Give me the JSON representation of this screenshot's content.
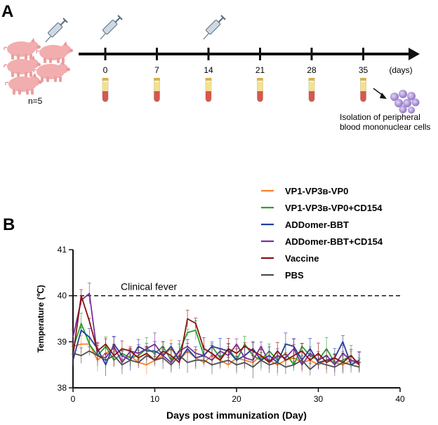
{
  "panel_a": {
    "letter": "A",
    "group_label": "n=5",
    "timeline": {
      "days": [
        "0",
        "7",
        "14",
        "21",
        "28",
        "35"
      ],
      "unit_label": "(days)",
      "injection_days": [
        "0",
        "14"
      ],
      "cell_isolation_note": [
        "Isolation of peripheral",
        "blood mononuclear cells"
      ]
    }
  },
  "panel_b": {
    "letter": "B",
    "threshold_label": "Clinical fever"
  },
  "chart_data": {
    "type": "line",
    "xlabel": "Days post immunization (Day)",
    "ylabel": "Temperature (℃)",
    "xlim": [
      0,
      40
    ],
    "ylim": [
      38,
      41
    ],
    "xticks": [
      0,
      10,
      20,
      30,
      40
    ],
    "yticks": [
      38,
      39,
      40,
      41
    ],
    "threshold": 40,
    "x": [
      0,
      1,
      2,
      3,
      4,
      5,
      6,
      7,
      8,
      9,
      10,
      11,
      12,
      13,
      14,
      15,
      16,
      17,
      18,
      19,
      20,
      21,
      22,
      23,
      24,
      25,
      26,
      27,
      28,
      29,
      30,
      31,
      32,
      33,
      34,
      35
    ],
    "series": [
      {
        "name": "VP1-VP3ʙ-VP0",
        "color": "#ff7f27",
        "values": [
          38.9,
          38.95,
          38.95,
          38.6,
          38.75,
          38.85,
          38.6,
          38.7,
          38.55,
          38.5,
          38.6,
          38.7,
          38.85,
          38.6,
          38.8,
          38.65,
          38.55,
          38.7,
          38.6,
          38.5,
          38.65,
          38.6,
          38.55,
          38.7,
          38.6,
          38.5,
          38.6,
          38.65,
          38.55,
          38.6,
          38.5,
          38.6,
          38.55,
          38.5,
          38.6,
          38.5
        ]
      },
      {
        "name": "VP1-VP3ʙ-VP0+CD154",
        "color": "#2ca02c",
        "values": [
          38.85,
          39.4,
          38.95,
          38.7,
          38.9,
          38.6,
          38.75,
          38.65,
          38.7,
          38.85,
          38.75,
          38.9,
          38.6,
          38.8,
          39.2,
          39.25,
          38.7,
          38.9,
          38.65,
          38.85,
          38.6,
          38.95,
          38.7,
          38.6,
          38.8,
          38.6,
          38.75,
          38.5,
          38.9,
          38.7,
          38.6,
          38.85,
          38.55,
          38.6,
          38.7,
          38.5
        ]
      },
      {
        "name": "ADDomer-BBT",
        "color": "#1f3fa0",
        "values": [
          38.6,
          39.25,
          39.1,
          38.85,
          38.5,
          38.95,
          38.7,
          38.6,
          38.9,
          38.8,
          38.8,
          38.7,
          38.9,
          38.6,
          38.85,
          38.65,
          38.7,
          38.9,
          38.85,
          38.8,
          38.6,
          38.7,
          38.85,
          38.6,
          38.7,
          38.55,
          38.95,
          38.9,
          38.6,
          38.85,
          38.55,
          38.6,
          38.65,
          39.0,
          38.5,
          38.6
        ]
      },
      {
        "name": "ADDomer-BBT+CD154",
        "color": "#7b2fa0",
        "values": [
          39.1,
          39.9,
          40.05,
          38.7,
          38.65,
          38.9,
          38.55,
          38.8,
          38.75,
          38.85,
          38.95,
          38.7,
          38.55,
          38.8,
          38.9,
          38.75,
          38.7,
          38.6,
          38.8,
          38.7,
          38.95,
          38.65,
          38.6,
          38.9,
          38.55,
          38.7,
          38.65,
          38.85,
          38.5,
          38.75,
          38.6,
          38.7,
          38.5,
          38.75,
          38.6,
          38.55
        ]
      },
      {
        "name": "Vaccine",
        "color": "#8b1010",
        "values": [
          38.7,
          40.0,
          39.45,
          38.8,
          38.95,
          38.7,
          38.85,
          38.8,
          38.65,
          38.75,
          38.6,
          38.8,
          38.7,
          38.55,
          39.5,
          39.4,
          38.85,
          38.75,
          38.6,
          38.85,
          38.75,
          38.9,
          38.8,
          38.7,
          38.55,
          38.8,
          38.6,
          38.7,
          38.8,
          38.6,
          38.75,
          38.55,
          38.65,
          38.55,
          38.7,
          38.5
        ]
      },
      {
        "name": "PBS",
        "color": "#4d4d4d",
        "values": [
          38.75,
          38.7,
          38.8,
          38.7,
          38.6,
          38.7,
          38.5,
          38.6,
          38.55,
          38.7,
          38.6,
          38.65,
          38.5,
          38.7,
          38.55,
          38.6,
          38.6,
          38.5,
          38.55,
          38.6,
          38.5,
          38.55,
          38.45,
          38.6,
          38.5,
          38.55,
          38.45,
          38.5,
          38.6,
          38.4,
          38.55,
          38.5,
          38.45,
          38.55,
          38.5,
          38.45
        ]
      }
    ]
  }
}
